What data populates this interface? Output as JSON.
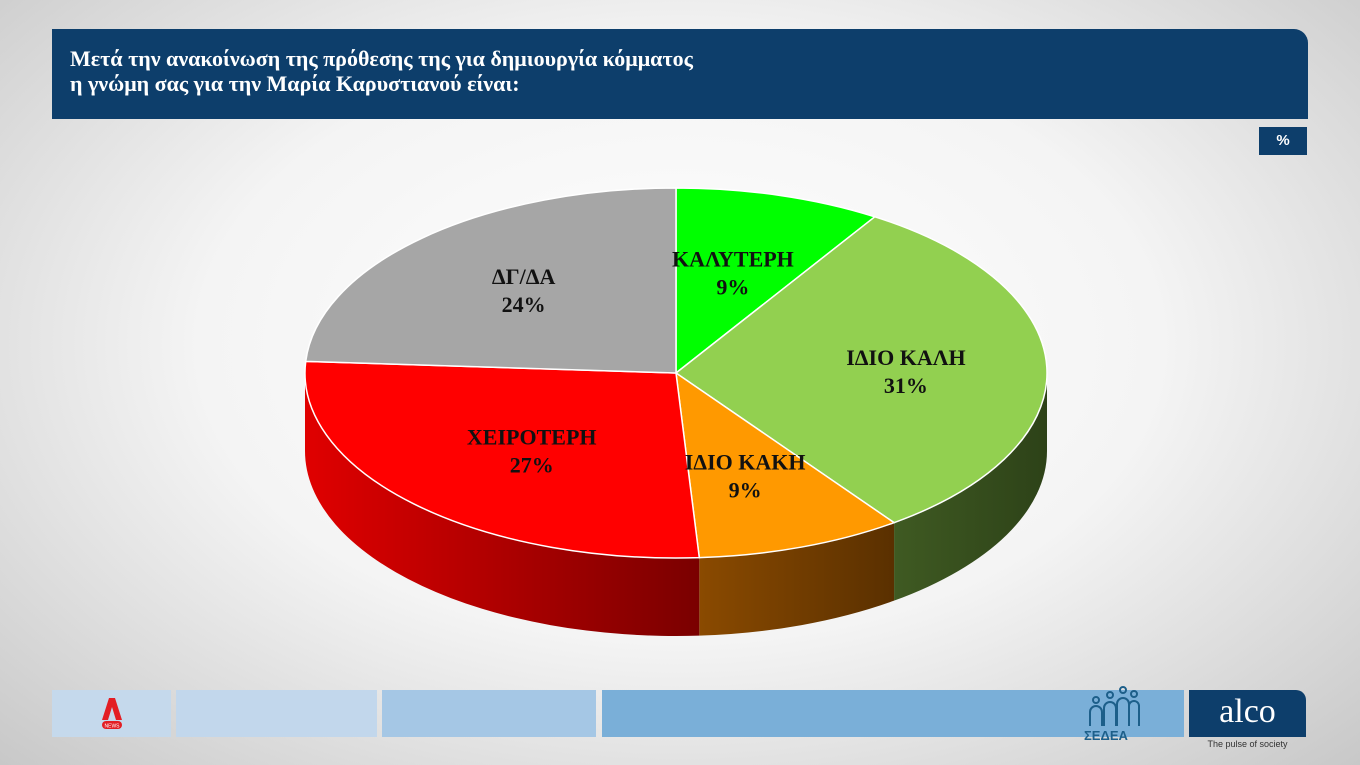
{
  "header": {
    "title_line1": "Μετά την ανακοίνωση της πρόθεσης της για δημιουργία κόμματος",
    "title_line2": "η γνώμη σας για την Μαρία Καρυστιανού είναι:"
  },
  "unit_badge": "%",
  "chart_data": {
    "type": "pie",
    "style": "3d",
    "title": "Μετά την ανακοίνωση της πρόθεσης της για δημιουργία κόμματος η γνώμη σας για την Μαρία Καρυστιανού είναι:",
    "slices": [
      {
        "label": "ΚΑΛΥΤΕΡΗ",
        "value": 9,
        "display": "9%",
        "color": "#00ff00",
        "side": "#2f6f10"
      },
      {
        "label": "ΙΔΙΟ ΚΑΛΗ",
        "value": 31,
        "display": "31%",
        "color": "#92d050",
        "side": "#3a5220"
      },
      {
        "label": "ΙΔΙΟ ΚΑΚΗ",
        "value": 9,
        "display": "9%",
        "color": "#ff9900",
        "side": "#6a3a00"
      },
      {
        "label": "ΧΕΙΡΟΤΕΡΗ",
        "value": 27,
        "display": "27%",
        "color": "#ff0000",
        "side": "#b00000"
      },
      {
        "label": "ΔΓ/ΔΑ",
        "value": 24,
        "display": "24%",
        "color": "#a6a6a6",
        "side": "#6e6e6e"
      }
    ]
  },
  "footer": {
    "sedea": "ΣΕΔΕΑ",
    "alco": "alco",
    "alco_tagline": "The pulse of society",
    "news_logo": "NEWS"
  }
}
